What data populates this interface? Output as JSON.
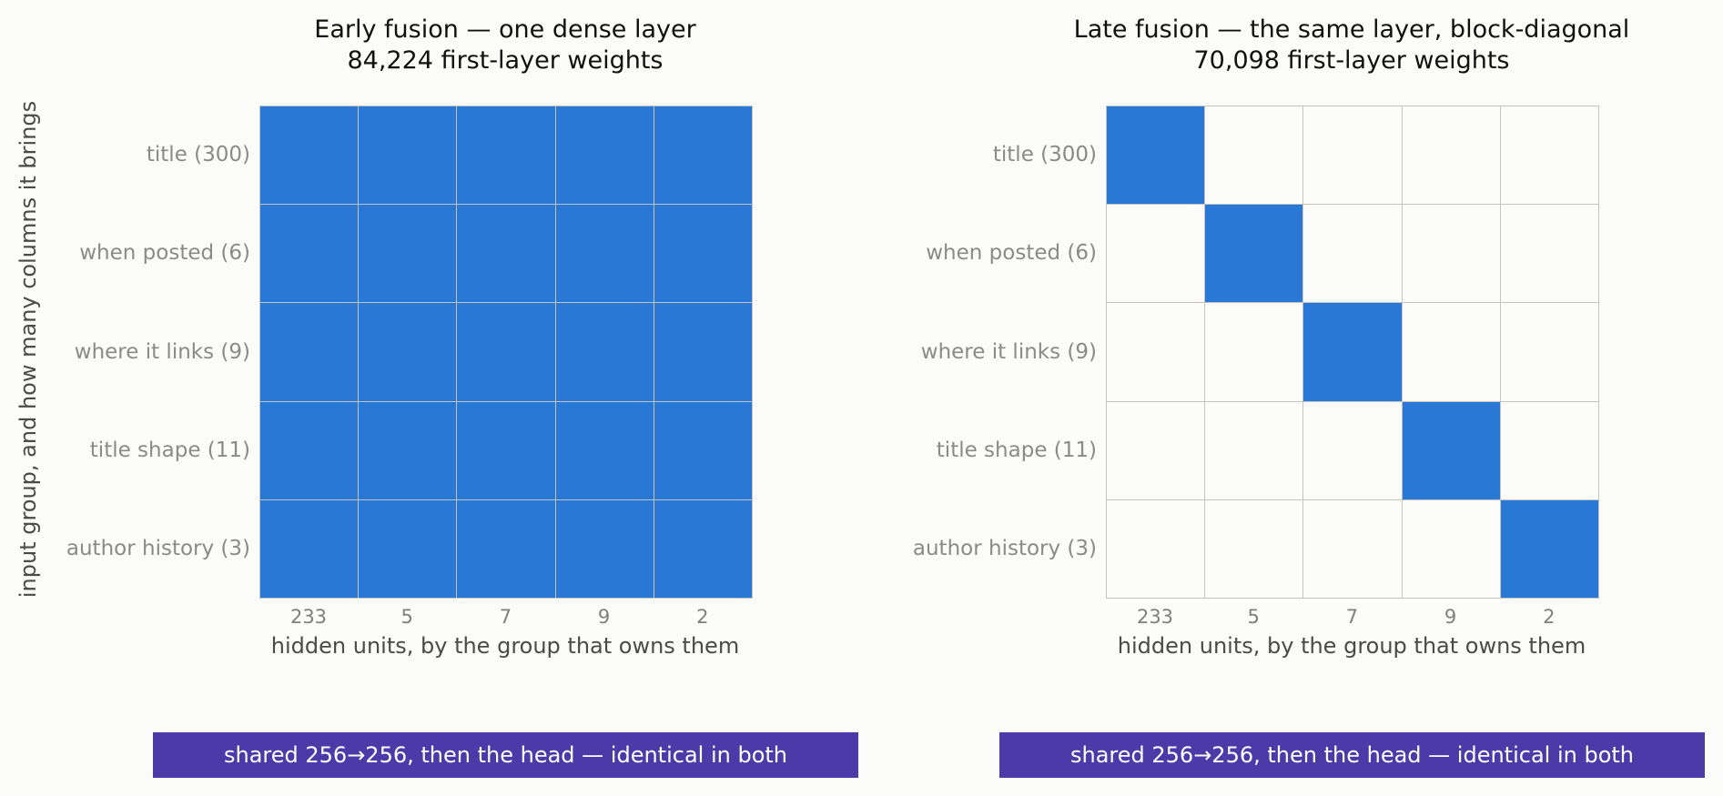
{
  "colors": {
    "filled": "#2a78d6",
    "empty": "#fbfbf9",
    "grid": "#c4c4bc",
    "banner": "#4b3aa8"
  },
  "shared": {
    "ylabel": "input group, and how many columns it brings",
    "banner_text": "shared 256→256, then the head — identical in both"
  },
  "chart_data": [
    {
      "type": "heatmap",
      "title": "Early fusion — one dense layer",
      "subtitle": "84,224 first-layer weights",
      "xlabel": "hidden units, by the group that owns them",
      "ylabel": "input group, and how many columns it brings",
      "rows": [
        "title  (300)",
        "when posted  (6)",
        "where it links  (9)",
        "title shape  (11)",
        "author history  (3)"
      ],
      "columns": [
        "233",
        "5",
        "7",
        "9",
        "2"
      ],
      "values": [
        [
          1,
          1,
          1,
          1,
          1
        ],
        [
          1,
          1,
          1,
          1,
          1
        ],
        [
          1,
          1,
          1,
          1,
          1
        ],
        [
          1,
          1,
          1,
          1,
          1
        ],
        [
          1,
          1,
          1,
          1,
          1
        ]
      ]
    },
    {
      "type": "heatmap",
      "title": "Late fusion — the same layer, block-diagonal",
      "subtitle": "70,098 first-layer weights",
      "xlabel": "hidden units, by the group that owns them",
      "ylabel": "",
      "rows": [
        "title  (300)",
        "when posted  (6)",
        "where it links  (9)",
        "title shape  (11)",
        "author history  (3)"
      ],
      "columns": [
        "233",
        "5",
        "7",
        "9",
        "2"
      ],
      "values": [
        [
          1,
          0,
          0,
          0,
          0
        ],
        [
          0,
          1,
          0,
          0,
          0
        ],
        [
          0,
          0,
          1,
          0,
          0
        ],
        [
          0,
          0,
          0,
          1,
          0
        ],
        [
          0,
          0,
          0,
          0,
          1
        ]
      ]
    }
  ]
}
